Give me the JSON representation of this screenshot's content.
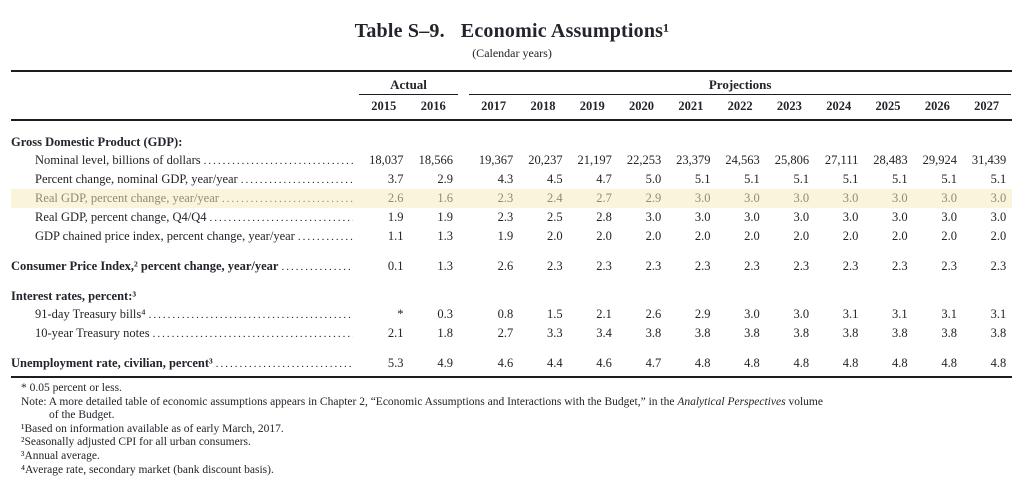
{
  "title": {
    "label": "Table S–9.",
    "text": "Economic Assumptions¹",
    "subtitle": "(Calendar years)"
  },
  "header": {
    "actual": "Actual",
    "projections": "Projections",
    "years": [
      "2015",
      "2016",
      "2017",
      "2018",
      "2019",
      "2020",
      "2021",
      "2022",
      "2023",
      "2024",
      "2025",
      "2026",
      "2027"
    ]
  },
  "rows": [
    {
      "label": "Gross Domestic Product (GDP):"
    },
    {
      "label": "Nominal level, billions of dollars",
      "values": [
        "18,037",
        "18,566",
        "19,367",
        "20,237",
        "21,197",
        "22,253",
        "23,379",
        "24,563",
        "25,806",
        "27,111",
        "28,483",
        "29,924",
        "31,439"
      ]
    },
    {
      "label": "Percent change, nominal GDP, year/year",
      "values": [
        "3.7",
        "2.9",
        "4.3",
        "4.5",
        "4.7",
        "5.0",
        "5.1",
        "5.1",
        "5.1",
        "5.1",
        "5.1",
        "5.1",
        "5.1"
      ]
    },
    {
      "label": "Real GDP, percent change, year/year",
      "values": [
        "2.6",
        "1.6",
        "2.3",
        "2.4",
        "2.7",
        "2.9",
        "3.0",
        "3.0",
        "3.0",
        "3.0",
        "3.0",
        "3.0",
        "3.0"
      ]
    },
    {
      "label": "Real GDP, percent change, Q4/Q4",
      "values": [
        "1.9",
        "1.9",
        "2.3",
        "2.5",
        "2.8",
        "3.0",
        "3.0",
        "3.0",
        "3.0",
        "3.0",
        "3.0",
        "3.0",
        "3.0"
      ]
    },
    {
      "label": "GDP chained price index, percent change, year/year",
      "values": [
        "1.1",
        "1.3",
        "1.9",
        "2.0",
        "2.0",
        "2.0",
        "2.0",
        "2.0",
        "2.0",
        "2.0",
        "2.0",
        "2.0",
        "2.0"
      ]
    },
    {
      "label": "Consumer Price Index,² percent change, year/year",
      "values": [
        "0.1",
        "1.3",
        "2.6",
        "2.3",
        "2.3",
        "2.3",
        "2.3",
        "2.3",
        "2.3",
        "2.3",
        "2.3",
        "2.3",
        "2.3"
      ]
    },
    {
      "label": "Interest rates, percent:³"
    },
    {
      "label": "91-day Treasury bills⁴",
      "values": [
        "*",
        "0.3",
        "0.8",
        "1.5",
        "2.1",
        "2.6",
        "2.9",
        "3.0",
        "3.0",
        "3.1",
        "3.1",
        "3.1",
        "3.1"
      ]
    },
    {
      "label": "10-year Treasury notes",
      "values": [
        "2.1",
        "1.8",
        "2.7",
        "3.3",
        "3.4",
        "3.8",
        "3.8",
        "3.8",
        "3.8",
        "3.8",
        "3.8",
        "3.8",
        "3.8"
      ]
    },
    {
      "label": "Unemployment rate, civilian, percent³",
      "values": [
        "5.3",
        "4.9",
        "4.6",
        "4.4",
        "4.6",
        "4.7",
        "4.8",
        "4.8",
        "4.8",
        "4.8",
        "4.8",
        "4.8",
        "4.8"
      ]
    }
  ],
  "footnotes": {
    "asterisk": "* 0.05 percent or less.",
    "note_pre": "Note: A more detailed table of economic assumptions appears in Chapter 2, “Economic Assumptions and Interactions with the Budget,” in the ",
    "note_italic": "Analytical Perspectives",
    "note_post": " volume",
    "note_line2": "of the Budget.",
    "fn1": "¹Based on information available as of early March, 2017.",
    "fn2": "²Seasonally adjusted CPI for all urban consumers.",
    "fn3": "³Annual average.",
    "fn4": "⁴Average rate, secondary market (bank discount basis)."
  }
}
